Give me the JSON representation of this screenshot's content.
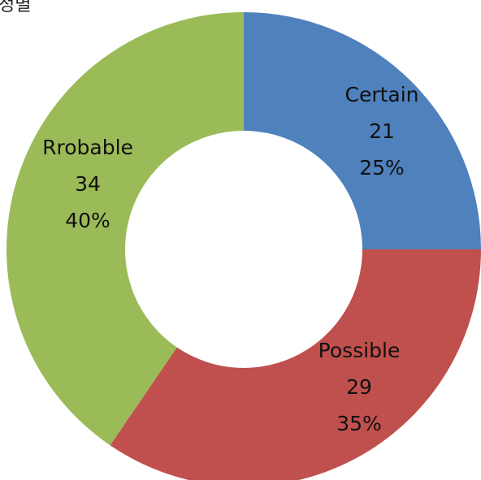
{
  "corner_text": "정별",
  "chart_data": {
    "type": "pie",
    "variant": "doughnut",
    "title": "",
    "categories": [
      "Certain",
      "Possible",
      "Rrobable"
    ],
    "values": [
      21,
      29,
      34
    ],
    "percents": [
      "25%",
      "35%",
      "40%"
    ],
    "colors": [
      "#4F81BD",
      "#C0504D",
      "#9BBB59"
    ],
    "start_angle_deg": 0,
    "direction": "clockwise",
    "legend": "none",
    "data_labels": "category, value, percent"
  }
}
